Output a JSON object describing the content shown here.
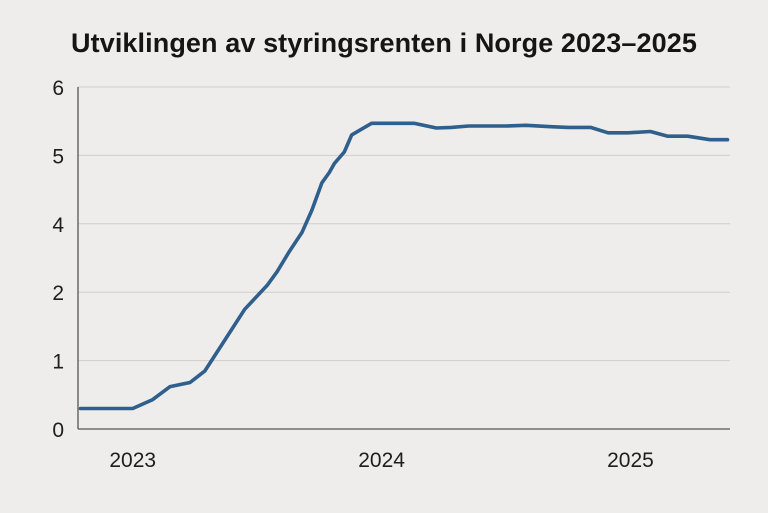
{
  "chart_data": {
    "type": "line",
    "title": "Utviklingen av styringsrenten i Norge 2023–2025",
    "xlabel": "",
    "ylabel": "",
    "y_ticks": [
      "0",
      "1",
      "2",
      "4",
      "5",
      "6"
    ],
    "x_ticks": [
      {
        "label": "2023",
        "x": 2023.0
      },
      {
        "label": "2024",
        "x": 2024.0
      },
      {
        "label": "2025",
        "x": 2025.0
      }
    ],
    "xlim": [
      2022.78,
      2025.4
    ],
    "grid": true,
    "legend": "none",
    "colors": {
      "line": "#2f5f8d",
      "background": "#eeedeb",
      "grid": "#cfcecb"
    },
    "series": [
      {
        "values": [
          [
            2022.79,
            0.3
          ],
          [
            2022.86,
            0.3
          ],
          [
            2022.93,
            0.3
          ],
          [
            2023.0,
            0.3
          ],
          [
            2023.08,
            0.43
          ],
          [
            2023.15,
            0.62
          ],
          [
            2023.23,
            0.68
          ],
          [
            2023.29,
            0.85
          ],
          [
            2023.37,
            1.3
          ],
          [
            2023.45,
            1.75
          ],
          [
            2023.54,
            2.2
          ],
          [
            2023.58,
            2.6
          ],
          [
            2023.63,
            3.2
          ],
          [
            2023.68,
            3.75
          ],
          [
            2023.72,
            4.2
          ],
          [
            2023.76,
            4.6
          ],
          [
            2023.79,
            4.75
          ],
          [
            2023.81,
            4.88
          ],
          [
            2023.85,
            5.05
          ],
          [
            2023.88,
            5.3
          ],
          [
            2023.96,
            5.47
          ],
          [
            2024.0,
            5.47
          ],
          [
            2024.06,
            5.47
          ],
          [
            2024.13,
            5.47
          ],
          [
            2024.22,
            5.4
          ],
          [
            2024.28,
            5.41
          ],
          [
            2024.35,
            5.43
          ],
          [
            2024.5,
            5.43
          ],
          [
            2024.58,
            5.44
          ],
          [
            2024.68,
            5.42
          ],
          [
            2024.75,
            5.41
          ],
          [
            2024.84,
            5.41
          ],
          [
            2024.91,
            5.33
          ],
          [
            2024.99,
            5.33
          ],
          [
            2025.08,
            5.35
          ],
          [
            2025.15,
            5.28
          ],
          [
            2025.23,
            5.28
          ],
          [
            2025.32,
            5.23
          ],
          [
            2025.39,
            5.23
          ]
        ]
      }
    ]
  }
}
